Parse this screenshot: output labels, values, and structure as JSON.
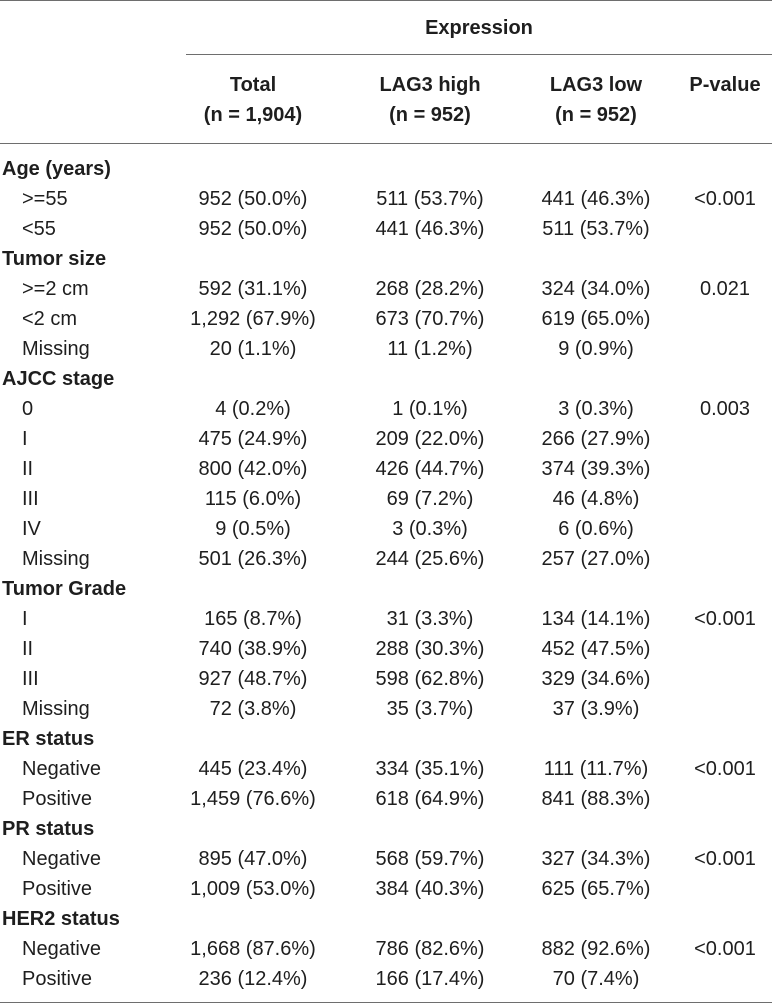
{
  "header": {
    "expression": "Expression",
    "columns": {
      "total": [
        "Total",
        "(n = 1,904)"
      ],
      "high": [
        "LAG3 high",
        "(n = 952)"
      ],
      "low": [
        "LAG3 low",
        "(n = 952)"
      ],
      "p": [
        "P-value"
      ]
    }
  },
  "rows": [
    {
      "type": "section",
      "label": "Age (years)"
    },
    {
      "type": "sub",
      "label": ">=55",
      "total": "952 (50.0%)",
      "high": "511 (53.7%)",
      "low": "441 (46.3%)",
      "p": "<0.001"
    },
    {
      "type": "sub",
      "label": "<55",
      "total": "952 (50.0%)",
      "high": "441 (46.3%)",
      "low": "511 (53.7%)",
      "p": ""
    },
    {
      "type": "section",
      "label": "Tumor size"
    },
    {
      "type": "sub",
      "label": ">=2 cm",
      "total": "592 (31.1%)",
      "high": "268 (28.2%)",
      "low": "324 (34.0%)",
      "p": "0.021"
    },
    {
      "type": "sub",
      "label": "<2 cm",
      "total": "1,292 (67.9%)",
      "high": "673 (70.7%)",
      "low": "619 (65.0%)",
      "p": ""
    },
    {
      "type": "sub",
      "label": "Missing",
      "total": "20 (1.1%)",
      "high": "11 (1.2%)",
      "low": "9 (0.9%)",
      "p": ""
    },
    {
      "type": "section",
      "label": "AJCC stage"
    },
    {
      "type": "sub",
      "label": "0",
      "total": "4 (0.2%)",
      "high": "1 (0.1%)",
      "low": "3 (0.3%)",
      "p": "0.003"
    },
    {
      "type": "sub",
      "label": "I",
      "total": "475 (24.9%)",
      "high": "209 (22.0%)",
      "low": "266 (27.9%)",
      "p": ""
    },
    {
      "type": "sub",
      "label": "II",
      "total": "800 (42.0%)",
      "high": "426 (44.7%)",
      "low": "374 (39.3%)",
      "p": ""
    },
    {
      "type": "sub",
      "label": "III",
      "total": "115 (6.0%)",
      "high": "69 (7.2%)",
      "low": "46 (4.8%)",
      "p": ""
    },
    {
      "type": "sub",
      "label": "IV",
      "total": "9 (0.5%)",
      "high": "3 (0.3%)",
      "low": "6 (0.6%)",
      "p": ""
    },
    {
      "type": "sub",
      "label": "Missing",
      "total": "501 (26.3%)",
      "high": "244 (25.6%)",
      "low": "257 (27.0%)",
      "p": ""
    },
    {
      "type": "section",
      "label": "Tumor Grade"
    },
    {
      "type": "sub",
      "label": "I",
      "total": "165 (8.7%)",
      "high": "31 (3.3%)",
      "low": "134 (14.1%)",
      "p": "<0.001"
    },
    {
      "type": "sub",
      "label": "II",
      "total": "740 (38.9%)",
      "high": "288 (30.3%)",
      "low": "452 (47.5%)",
      "p": ""
    },
    {
      "type": "sub",
      "label": "III",
      "total": "927 (48.7%)",
      "high": "598 (62.8%)",
      "low": "329 (34.6%)",
      "p": ""
    },
    {
      "type": "sub",
      "label": "Missing",
      "total": "72 (3.8%)",
      "high": "35 (3.7%)",
      "low": "37 (3.9%)",
      "p": ""
    },
    {
      "type": "section",
      "label": "ER status"
    },
    {
      "type": "sub",
      "label": "Negative",
      "total": "445 (23.4%)",
      "high": "334 (35.1%)",
      "low": "111 (11.7%)",
      "p": "<0.001"
    },
    {
      "type": "sub",
      "label": "Positive",
      "total": "1,459 (76.6%)",
      "high": "618 (64.9%)",
      "low": "841 (88.3%)",
      "p": ""
    },
    {
      "type": "section",
      "label": "PR status"
    },
    {
      "type": "sub",
      "label": "Negative",
      "total": "895 (47.0%)",
      "high": "568 (59.7%)",
      "low": "327 (34.3%)",
      "p": "<0.001"
    },
    {
      "type": "sub",
      "label": "Positive",
      "total": "1,009 (53.0%)",
      "high": "384 (40.3%)",
      "low": "625 (65.7%)",
      "p": ""
    },
    {
      "type": "section",
      "label": "HER2 status"
    },
    {
      "type": "sub",
      "label": "Negative",
      "total": "1,668 (87.6%)",
      "high": "786 (82.6%)",
      "low": "882 (92.6%)",
      "p": "<0.001"
    },
    {
      "type": "sub",
      "label": "Positive",
      "total": "236 (12.4%)",
      "high": "166 (17.4%)",
      "low": "70 (7.4%)",
      "p": ""
    }
  ]
}
